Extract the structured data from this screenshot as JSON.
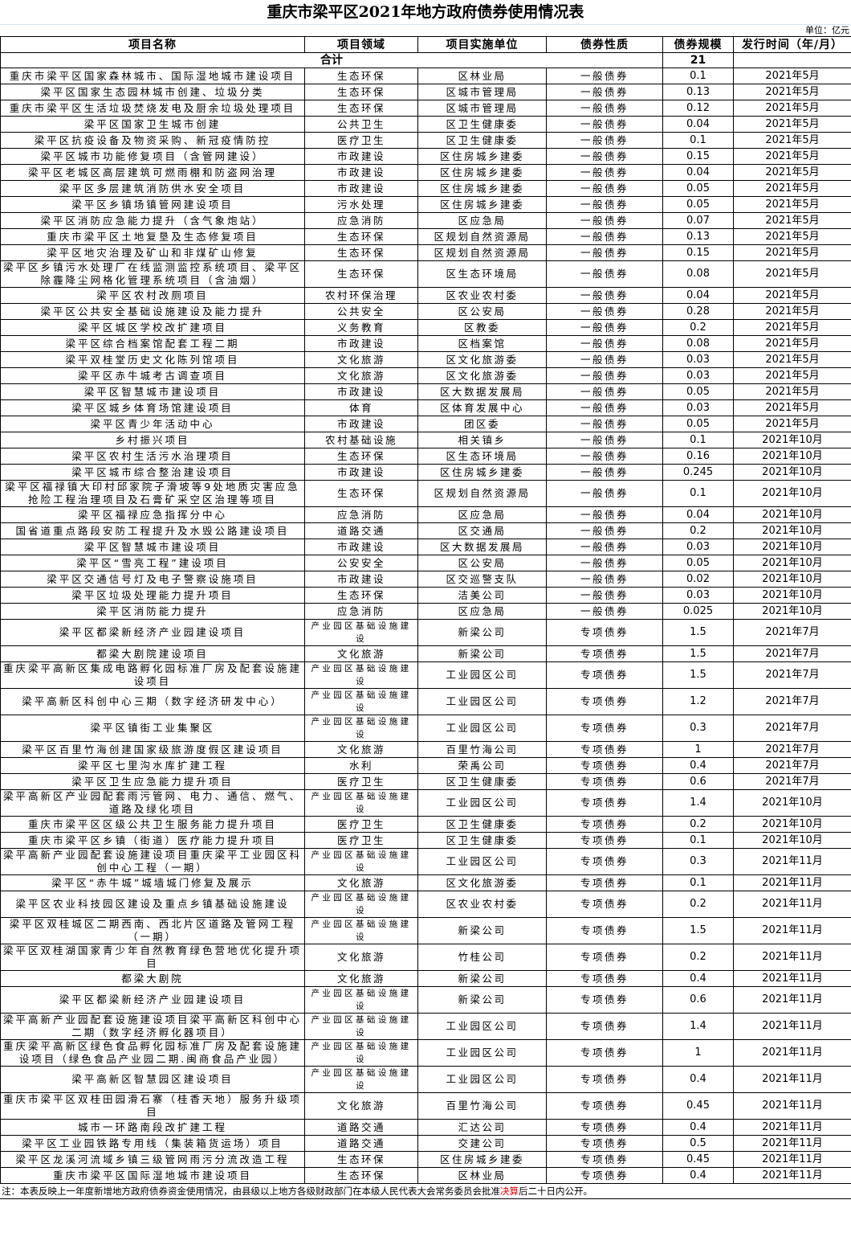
{
  "title": "重庆市梁平区2021年地方政府债券使用情况表",
  "unit": "单位：亿元",
  "headers": [
    "项目名称",
    "项目领域",
    "项目实施单位",
    "债券性质",
    "债券规模",
    "发行时间（年/月）"
  ],
  "total": {
    "label": "合计",
    "amount": "21"
  },
  "rows": [
    [
      "重庆市梁平区国家森林城市、国际湿地城市建设项目",
      "生态环保",
      "区林业局",
      "一般债券",
      "0.1",
      "2021年5月"
    ],
    [
      "梁平区国家生态园林城市创建、垃圾分类",
      "生态环保",
      "区城市管理局",
      "一般债券",
      "0.13",
      "2021年5月"
    ],
    [
      "重庆市梁平区生活垃圾焚烧发电及厨余垃圾处理项目",
      "生态环保",
      "区城市管理局",
      "一般债券",
      "0.12",
      "2021年5月"
    ],
    [
      "梁平区国家卫生城市创建",
      "公共卫生",
      "区卫生健康委",
      "一般债券",
      "0.04",
      "2021年5月"
    ],
    [
      "梁平区抗疫设备及物资采购、新冠疫情防控",
      "医疗卫生",
      "区卫生健康委",
      "一般债券",
      "0.1",
      "2021年5月"
    ],
    [
      "梁平区城市功能修复项目（含管网建设）",
      "市政建设",
      "区住房城乡建委",
      "一般债券",
      "0.15",
      "2021年5月"
    ],
    [
      "梁平区老城区高层建筑可燃雨棚和防盗网治理",
      "市政建设",
      "区住房城乡建委",
      "一般债券",
      "0.04",
      "2021年5月"
    ],
    [
      "梁平区多层建筑消防供水安全项目",
      "市政建设",
      "区住房城乡建委",
      "一般债券",
      "0.05",
      "2021年5月"
    ],
    [
      "梁平区乡镇场镇管网建设项目",
      "污水处理",
      "区住房城乡建委",
      "一般债券",
      "0.05",
      "2021年5月"
    ],
    [
      "梁平区消防应急能力提升（含气象炮站）",
      "应急消防",
      "区应急局",
      "一般债券",
      "0.07",
      "2021年5月"
    ],
    [
      "重庆市梁平区土地复垦及生态修复项目",
      "生态环保",
      "区规划自然资源局",
      "一般债券",
      "0.13",
      "2021年5月"
    ],
    [
      "梁平区地灾治理及矿山和非煤矿山修复",
      "生态环保",
      "区规划自然资源局",
      "一般债券",
      "0.15",
      "2021年5月"
    ],
    [
      "梁平区乡镇污水处理厂在线监测监控系统项目、梁平区除霾降尘网格化管理系统项目（含油烟）",
      "生态环保",
      "区生态环境局",
      "一般债券",
      "0.08",
      "2021年5月"
    ],
    [
      "梁平区农村改厕项目",
      "农村环保治理",
      "区农业农村委",
      "一般债券",
      "0.04",
      "2021年5月"
    ],
    [
      "梁平区公共安全基础设施建设及能力提升",
      "公共安全",
      "区公安局",
      "一般债券",
      "0.28",
      "2021年5月"
    ],
    [
      "梁平区城区学校改扩建项目",
      "义务教育",
      "区教委",
      "一般债券",
      "0.2",
      "2021年5月"
    ],
    [
      "梁平区综合档案馆配套工程二期",
      "市政建设",
      "区档案馆",
      "一般债券",
      "0.08",
      "2021年5月"
    ],
    [
      "梁平双桂堂历史文化陈列馆项目",
      "文化旅游",
      "区文化旅游委",
      "一般债券",
      "0.03",
      "2021年5月"
    ],
    [
      "梁平区赤牛城考古调查项目",
      "文化旅游",
      "区文化旅游委",
      "一般债券",
      "0.03",
      "2021年5月"
    ],
    [
      "梁平区智慧城市建设项目",
      "市政建设",
      "区大数据发展局",
      "一般债券",
      "0.05",
      "2021年5月"
    ],
    [
      "梁平区城乡体育场馆建设项目",
      "体育",
      "区体育发展中心",
      "一般债券",
      "0.03",
      "2021年5月"
    ],
    [
      "梁平区青少年活动中心",
      "市政建设",
      "团区委",
      "一般债券",
      "0.05",
      "2021年5月"
    ],
    [
      "乡村振兴项目",
      "农村基础设施",
      "相关镇乡",
      "一般债券",
      "0.1",
      "2021年10月"
    ],
    [
      "梁平区农村生活污水治理项目",
      "生态环保",
      "区生态环境局",
      "一般债券",
      "0.16",
      "2021年10月"
    ],
    [
      "梁平区城市综合整治建设项目",
      "市政建设",
      "区住房城乡建委",
      "一般债券",
      "0.245",
      "2021年10月"
    ],
    [
      "梁平区福禄镇大印村邱家院子滑坡等9处地质灾害应急抢险工程治理项目及石膏矿采空区治理等项目",
      "生态环保",
      "区规划自然资源局",
      "一般债券",
      "0.1",
      "2021年10月"
    ],
    [
      "梁平区福禄应急指挥分中心",
      "应急消防",
      "区应急局",
      "一般债券",
      "0.04",
      "2021年10月"
    ],
    [
      "国省道重点路段安防工程提升及水毁公路建设项目",
      "道路交通",
      "区交通局",
      "一般债券",
      "0.2",
      "2021年10月"
    ],
    [
      "梁平区智慧城市建设项目",
      "市政建设",
      "区大数据发展局",
      "一般债券",
      "0.03",
      "2021年10月"
    ],
    [
      "梁平区“雪亮工程”建设项目",
      "公安安全",
      "区公安局",
      "一般债券",
      "0.05",
      "2021年10月"
    ],
    [
      "梁平区交通信号灯及电子警察设施项目",
      "市政建设",
      "区交巡警支队",
      "一般债券",
      "0.02",
      "2021年10月"
    ],
    [
      "梁平区垃圾处理能力提升项目",
      "生态环保",
      "洁美公司",
      "一般债券",
      "0.03",
      "2021年10月"
    ],
    [
      "梁平区消防能力提升",
      "应急消防",
      "区应急局",
      "一般债券",
      "0.025",
      "2021年10月"
    ],
    [
      "梁平区都梁新经济产业园建设项目",
      "产业园区基础设施建设",
      "新梁公司",
      "专项债券",
      "1.5",
      "2021年7月"
    ],
    [
      "都梁大剧院建设项目",
      "文化旅游",
      "新梁公司",
      "专项债券",
      "1.5",
      "2021年7月"
    ],
    [
      "重庆梁平高新区集成电路孵化园标准厂房及配套设施建设项目",
      "产业园区基础设施建设",
      "工业园区公司",
      "专项债券",
      "1.5",
      "2021年7月"
    ],
    [
      "梁平高新区科创中心三期（数字经济研发中心）",
      "产业园区基础设施建设",
      "工业园区公司",
      "专项债券",
      "1.2",
      "2021年7月"
    ],
    [
      "梁平区镇街工业集聚区",
      "产业园区基础设施建设",
      "工业园区公司",
      "专项债券",
      "0.3",
      "2021年7月"
    ],
    [
      "梁平区百里竹海创建国家级旅游度假区建设项目",
      "文化旅游",
      "百里竹海公司",
      "专项债券",
      "1",
      "2021年7月"
    ],
    [
      "梁平区七里沟水库扩建工程",
      "水利",
      "荣禹公司",
      "专项债券",
      "0.4",
      "2021年7月"
    ],
    [
      "梁平区卫生应急能力提升项目",
      "医疗卫生",
      "区卫生健康委",
      "专项债券",
      "0.6",
      "2021年7月"
    ],
    [
      "梁平高新区产业园配套雨污管网、电力、通信、燃气、道路及绿化项目",
      "产业园区基础设施建设",
      "工业园区公司",
      "专项债券",
      "1.4",
      "2021年10月"
    ],
    [
      "重庆市梁平区区级公共卫生服务能力提升项目",
      "医疗卫生",
      "区卫生健康委",
      "专项债券",
      "0.2",
      "2021年10月"
    ],
    [
      "重庆市梁平区乡镇（街道）医疗能力提升项目",
      "医疗卫生",
      "区卫生健康委",
      "专项债券",
      "0.1",
      "2021年10月"
    ],
    [
      "梁平高新产业园配套设施建设项目重庆梁平工业园区科创中心工程（一期）",
      "产业园区基础设施建设",
      "工业园区公司",
      "专项债券",
      "0.3",
      "2021年11月"
    ],
    [
      "梁平区“赤牛城”城墙城门修复及展示",
      "文化旅游",
      "区文化旅游委",
      "专项债券",
      "0.1",
      "2021年11月"
    ],
    [
      "梁平区农业科技园区建设及重点乡镇基础设施建设",
      "产业园区基础设施建设",
      "区农业农村委",
      "专项债券",
      "0.2",
      "2021年11月"
    ],
    [
      "梁平区双桂城区二期西南、西北片区道路及管网工程（一期）",
      "产业园区基础设施建设",
      "新梁公司",
      "专项债券",
      "1.5",
      "2021年11月"
    ],
    [
      "梁平区双桂湖国家青少年自然教育绿色营地优化提升项目",
      "文化旅游",
      "竹桂公司",
      "专项债券",
      "0.2",
      "2021年11月"
    ],
    [
      "都梁大剧院",
      "文化旅游",
      "新梁公司",
      "专项债券",
      "0.4",
      "2021年11月"
    ],
    [
      "梁平区都梁新经济产业园建设项目",
      "产业园区基础设施建设",
      "新梁公司",
      "专项债券",
      "0.6",
      "2021年11月"
    ],
    [
      "梁平高新产业园配套设施建设项目梁平高新区科创中心二期（数字经济孵化器项目）",
      "产业园区基础设施建设",
      "工业园区公司",
      "专项债券",
      "1.4",
      "2021年11月"
    ],
    [
      "重庆梁平高新区绿色食品孵化园标准厂房及配套设施建设项目（绿色食品产业园二期.闽商食品产业园）",
      "产业园区基础设施建设",
      "工业园区公司",
      "专项债券",
      "1",
      "2021年11月"
    ],
    [
      "梁平高新区智慧园区建设项目",
      "产业园区基础设施建设",
      "工业园区公司",
      "专项债券",
      "0.4",
      "2021年11月"
    ],
    [
      "重庆市梁平区双桂田园滑石寨（桂香天地）服务升级项目",
      "文化旅游",
      "百里竹海公司",
      "专项债券",
      "0.45",
      "2021年11月"
    ],
    [
      "城市一环路南段改扩建工程",
      "道路交通",
      "汇达公司",
      "专项债券",
      "0.4",
      "2021年11月"
    ],
    [
      "梁平区工业园铁路专用线（集装箱货运场）项目",
      "道路交通",
      "交建公司",
      "专项债券",
      "0.5",
      "2021年11月"
    ],
    [
      "梁平区龙溪河流域乡镇三级管网雨污分流改造工程",
      "生态环保",
      "区住房城乡建委",
      "专项债券",
      "0.45",
      "2021年11月"
    ],
    [
      "重庆市梁平区国际湿地城市建设项目",
      "生态环保",
      "区林业局",
      "专项债券",
      "0.4",
      "2021年11月"
    ]
  ],
  "note": {
    "before": "注：本表反映上一年度新增地方政府债券资金使用情况，由县级以上地方各级财政部门在本级人民代表大会常务委员会批准",
    "highlight": "决算",
    "after": "后二十日内公开。",
    "highlight_color": "#e00000"
  }
}
